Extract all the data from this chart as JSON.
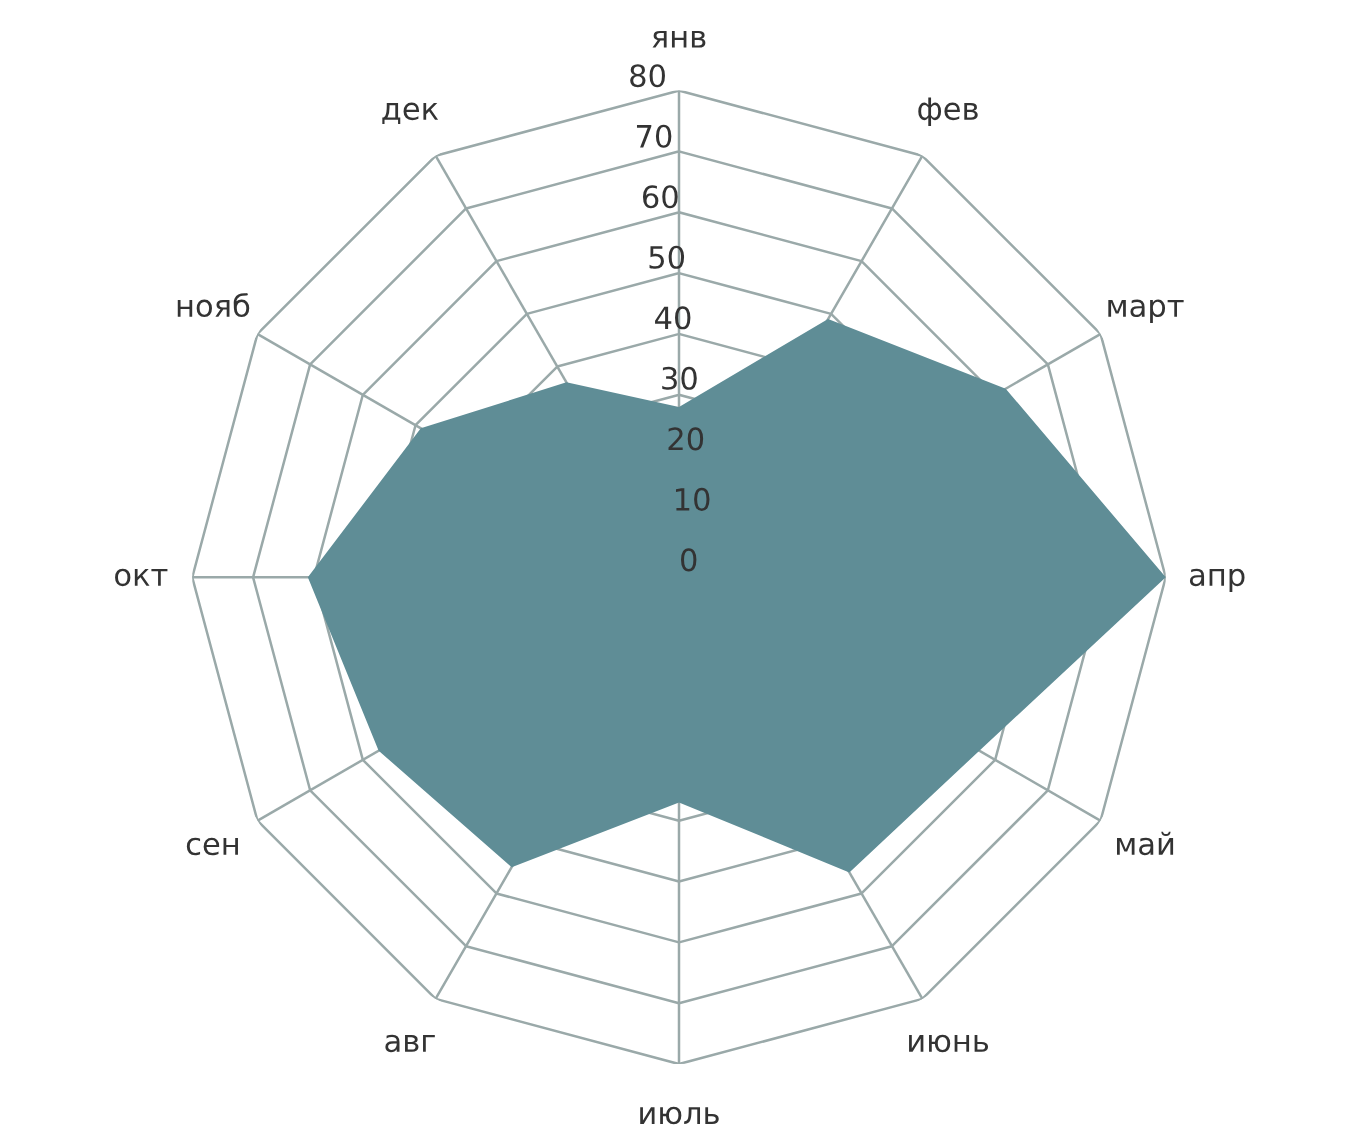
{
  "chart_data": {
    "type": "radar",
    "categories": [
      "янв",
      "фев",
      "март",
      "апр",
      "май",
      "июнь",
      "июль",
      "авг",
      "сен",
      "окт",
      "нояб",
      "дек"
    ],
    "series": [
      {
        "color": "#5f8d96",
        "values": [
          28,
          49,
          62,
          80,
          57,
          56,
          37,
          55,
          57,
          61,
          49,
          37
        ]
      }
    ],
    "ylim": [
      0,
      80
    ],
    "yticks": [
      0,
      10,
      20,
      30,
      40,
      50,
      60,
      70,
      80
    ],
    "grid": true
  }
}
